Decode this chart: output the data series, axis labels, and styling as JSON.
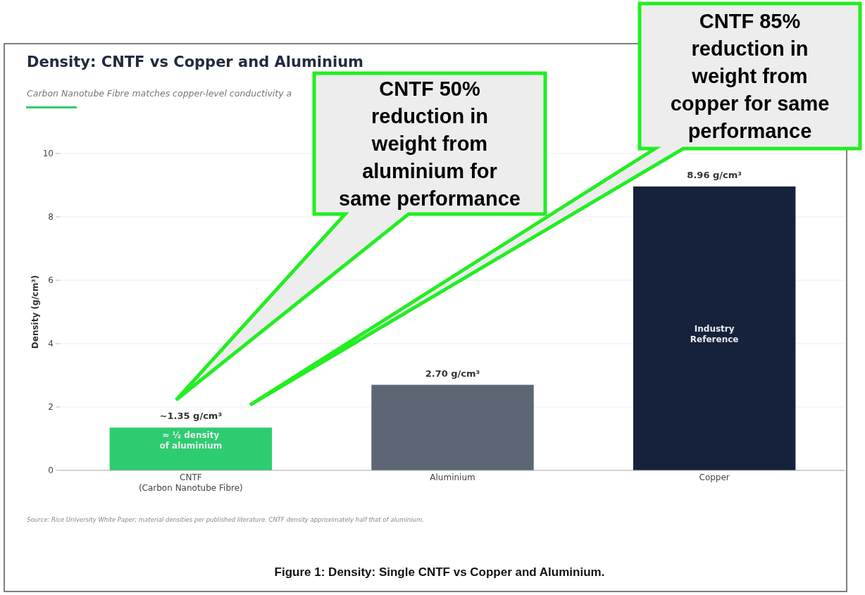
{
  "chart_data": {
    "type": "bar",
    "title": "Density: CNTF vs Copper and Aluminium",
    "subtitle": "Carbon Nanotube Fibre matches copper-level conductivity a",
    "ylabel": "Density (g/cm³)",
    "categories": [
      "CNTF\n(Carbon Nanotube Fibre)",
      "Aluminium",
      "Copper"
    ],
    "values": [
      1.35,
      2.7,
      8.96
    ],
    "colors": [
      "#2ecc71",
      "#5d6675",
      "#16223b"
    ],
    "value_labels": [
      "~1.35 g/cm³",
      "2.70 g/cm³",
      "8.96 g/cm³"
    ],
    "ylim": [
      0,
      10
    ],
    "yticks": [
      0,
      2,
      4,
      6,
      8,
      10
    ],
    "grid": "y",
    "annotations": [
      "≈ ½ density\nof aluminium",
      "Industry\nReference",
      "CNTF 50% reduction in weight from aluminium for same performance",
      "CNTF 85% reduction in weight from copper for same performance",
      "Source: Rice University White Paper; material densities per published literature. CNTF density approximately half that of aluminium.",
      "Figure 1: Density: Single CNTF vs Copper and Aluminium."
    ]
  }
}
